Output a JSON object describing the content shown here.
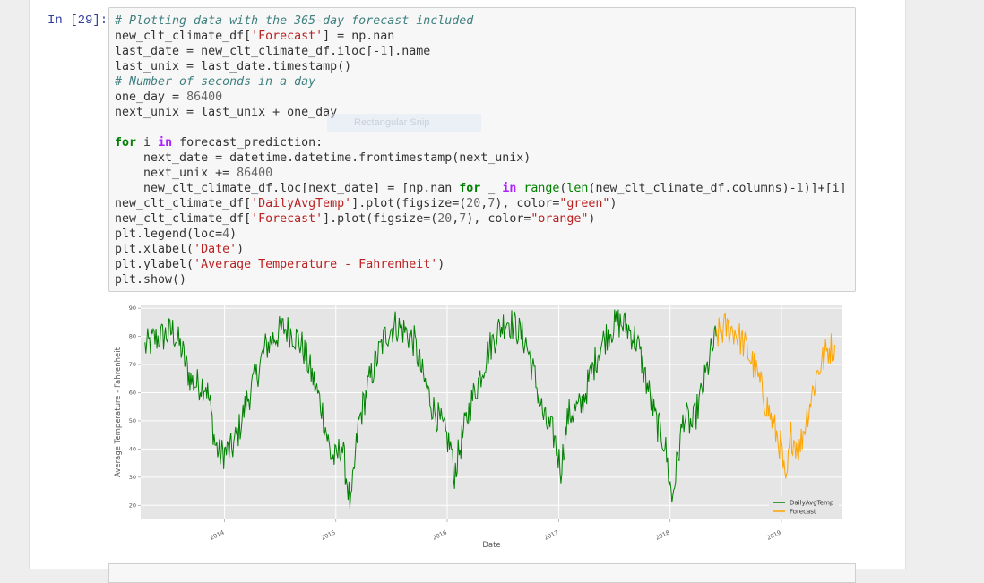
{
  "cell": {
    "prompt": "In [29]:",
    "snip_label": "Rectangular Snip"
  },
  "chart_data": {
    "type": "line",
    "xlabel": "Date",
    "ylabel": "Average Temperature - Fahrenheit",
    "ylim": [
      15,
      91
    ],
    "yticks": [
      20,
      30,
      40,
      50,
      60,
      70,
      80,
      90
    ],
    "xticks": [
      "2014",
      "2015",
      "2016",
      "2017",
      "2018",
      "2019"
    ],
    "xlim": [
      "2013-04-01",
      "2019-07-20"
    ],
    "grid": true,
    "legend_position": "lower-right",
    "series": [
      {
        "name": "DailyAvgTemp",
        "color": "#008000",
        "x": [
          "2013-04-15",
          "2013-05-15",
          "2013-06-15",
          "2013-07-15",
          "2013-08-15",
          "2013-09-01",
          "2013-09-15",
          "2013-10-01",
          "2013-11-01",
          "2013-11-15",
          "2013-12-01",
          "2013-12-15",
          "2014-01-07",
          "2014-01-25",
          "2014-02-15",
          "2014-03-15",
          "2014-04-15",
          "2014-05-15",
          "2014-06-15",
          "2014-07-15",
          "2014-08-15",
          "2014-09-15",
          "2014-10-15",
          "2014-11-15",
          "2014-12-01",
          "2014-12-15",
          "2015-01-01",
          "2015-01-20",
          "2015-02-19",
          "2015-03-15",
          "2015-04-15",
          "2015-05-15",
          "2015-06-15",
          "2015-07-15",
          "2015-08-15",
          "2015-09-15",
          "2015-10-15",
          "2015-11-15",
          "2015-12-15",
          "2016-01-15",
          "2016-01-22",
          "2016-02-15",
          "2016-03-15",
          "2016-04-15",
          "2016-05-15",
          "2016-06-15",
          "2016-07-15",
          "2016-08-15",
          "2016-09-15",
          "2016-10-15",
          "2016-11-15",
          "2016-12-15",
          "2017-01-08",
          "2017-02-01",
          "2017-03-15",
          "2017-04-15",
          "2017-05-15",
          "2017-06-15",
          "2017-07-15",
          "2017-08-15",
          "2017-09-15",
          "2017-10-15",
          "2017-11-15",
          "2017-12-15",
          "2018-01-07",
          "2018-02-15",
          "2018-03-15",
          "2018-04-15",
          "2018-05-15",
          "2018-06-01"
        ],
        "y": [
          76,
          79,
          80,
          82,
          75,
          68,
          64,
          63,
          63,
          55,
          42,
          38,
          39,
          40,
          46,
          57,
          66,
          76,
          80,
          83,
          81,
          76,
          66,
          55,
          46,
          38,
          36,
          42,
          19,
          48,
          62,
          72,
          81,
          84,
          82,
          78,
          65,
          55,
          48,
          40,
          30,
          42,
          55,
          65,
          75,
          82,
          86,
          83,
          78,
          65,
          50,
          45,
          33,
          52,
          55,
          66,
          76,
          82,
          85,
          83,
          78,
          64,
          50,
          42,
          22,
          52,
          48,
          60,
          74,
          80
        ]
      },
      {
        "name": "Forecast",
        "color": "#ffa500",
        "x": [
          "2018-06-01",
          "2018-07-01",
          "2018-08-01",
          "2018-09-01",
          "2018-10-01",
          "2018-11-01",
          "2018-12-01",
          "2019-01-01",
          "2019-01-15",
          "2019-02-01",
          "2019-03-01",
          "2019-04-01",
          "2019-05-01",
          "2019-06-01",
          "2019-06-25"
        ],
        "y": [
          80,
          83,
          82,
          77,
          70,
          60,
          50,
          40,
          25,
          45,
          40,
          55,
          68,
          75,
          77
        ]
      }
    ]
  }
}
